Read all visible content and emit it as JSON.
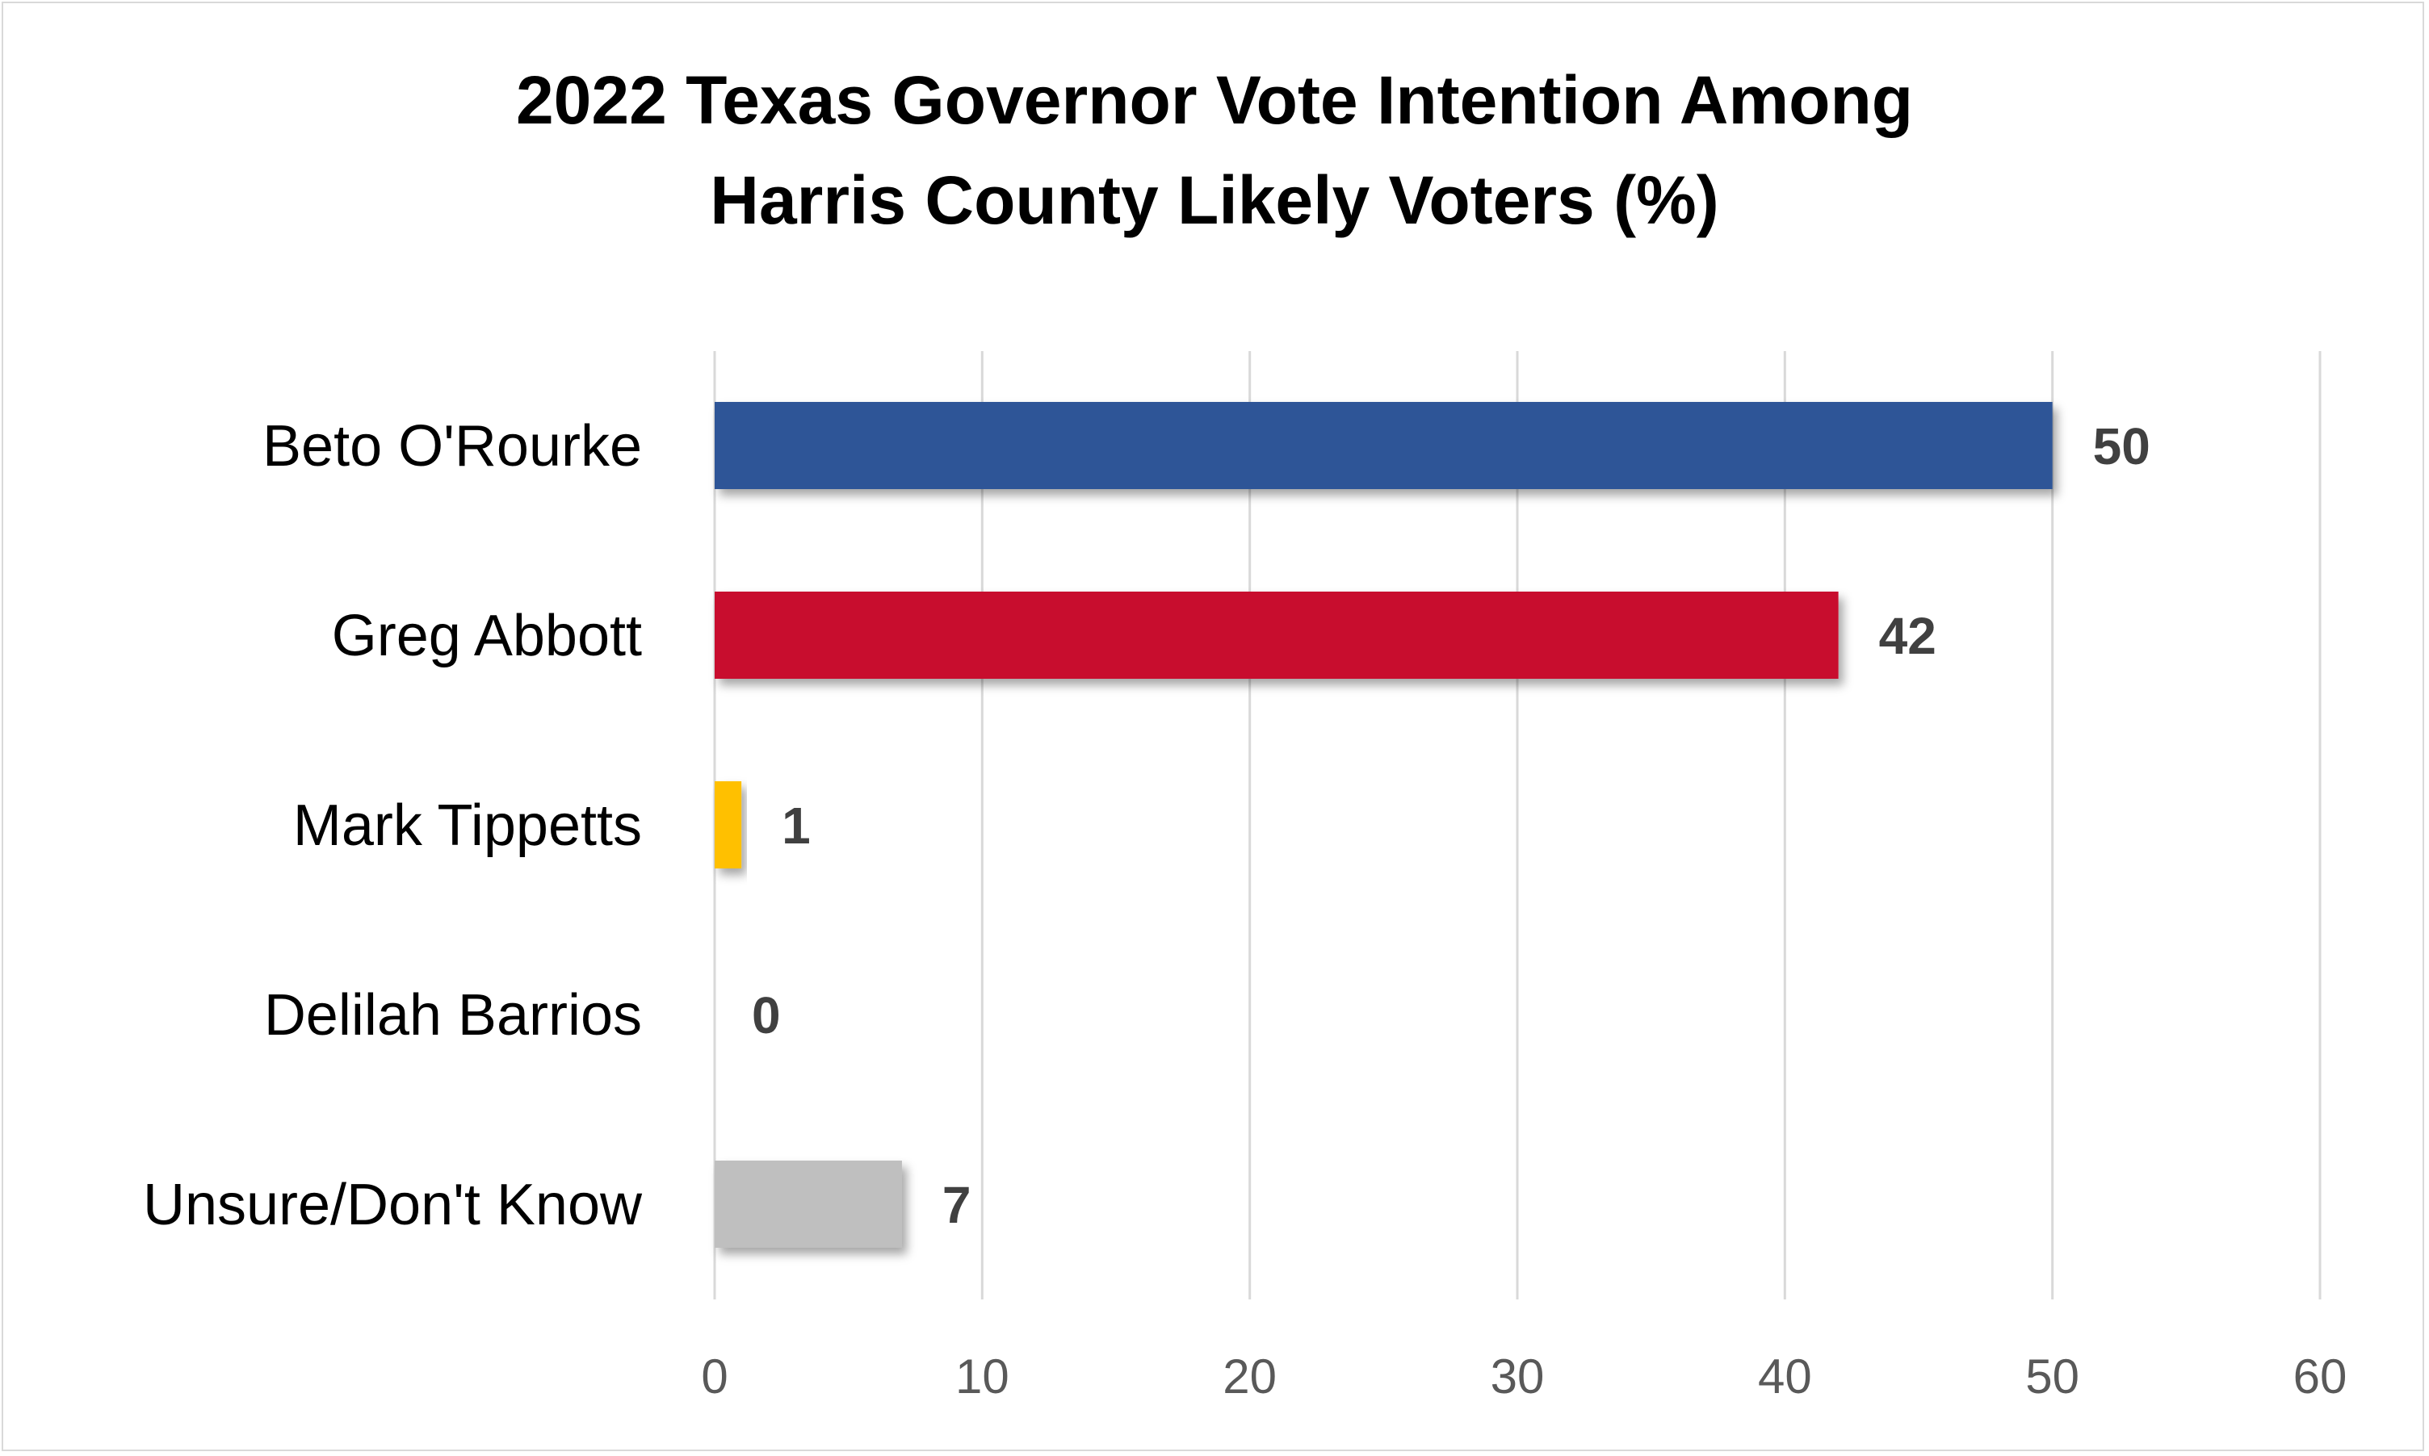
{
  "chart_data": {
    "type": "bar",
    "orientation": "horizontal",
    "title_lines": [
      "2022 Texas Governor Vote Intention Among",
      "Harris County Likely Voters (%)"
    ],
    "categories": [
      "Beto O'Rourke",
      "Greg Abbott",
      "Mark Tippetts",
      "Delilah Barrios",
      "Unsure/Don't Know"
    ],
    "values": [
      50,
      42,
      1,
      0,
      7
    ],
    "colors": [
      "#2F5597",
      "#C8102E",
      "#FFC000",
      "#A5A5A5",
      "#BFBFBF"
    ],
    "xlim": [
      0,
      60
    ],
    "xticks": [
      0,
      10,
      20,
      30,
      40,
      50,
      60
    ],
    "grid": "vertical",
    "data_labels": true,
    "legend": "none"
  }
}
